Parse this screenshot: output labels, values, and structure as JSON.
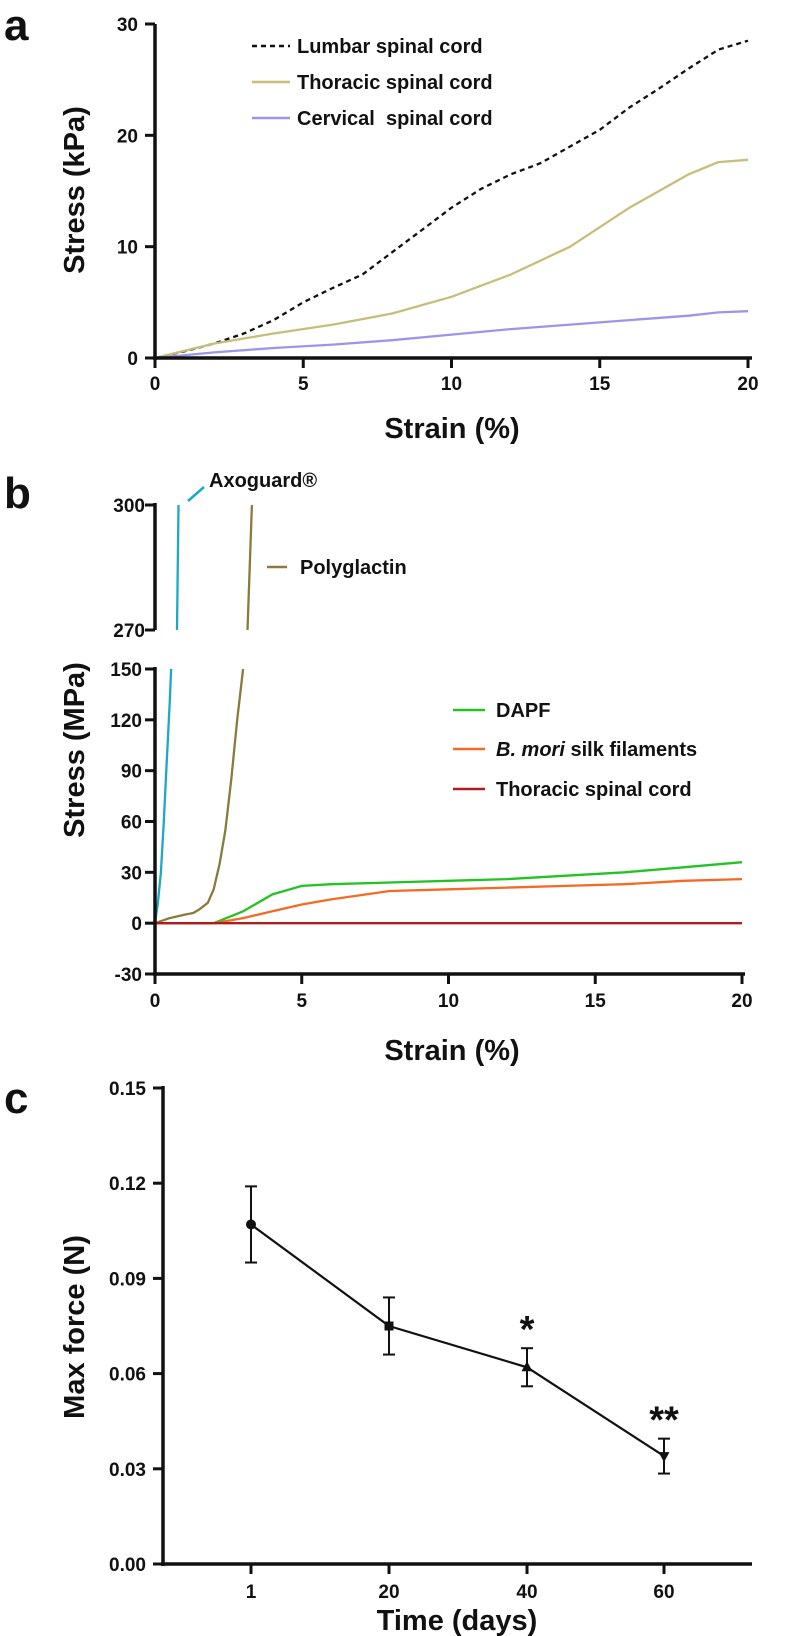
{
  "figure": {
    "panels": [
      "a",
      "b",
      "c"
    ]
  },
  "chart_data": [
    {
      "panel": "a",
      "type": "line",
      "xlabel": "Strain (%)",
      "ylabel": "Stress (kPa)",
      "xlim": [
        0,
        20
      ],
      "ylim": [
        0,
        30
      ],
      "xticks": [
        0,
        5,
        10,
        15,
        20
      ],
      "yticks": [
        0,
        10,
        20,
        30
      ],
      "grid": false,
      "legend_position": "top-center",
      "series": [
        {
          "name": "Lumbar spinal cord",
          "color": "#111111",
          "dash": "dashed",
          "x": [
            0,
            1,
            2,
            3,
            4,
            5,
            6,
            7,
            8,
            9,
            10,
            11,
            12,
            13,
            14,
            15,
            16,
            17,
            18,
            19,
            20
          ],
          "y": [
            0,
            0.6,
            1.3,
            2.2,
            3.4,
            5.0,
            6.3,
            7.5,
            9.5,
            11.5,
            13.5,
            15.2,
            16.5,
            17.5,
            19.0,
            20.5,
            22.5,
            24.2,
            26.0,
            27.7,
            28.5
          ]
        },
        {
          "name": "Thoracic spinal cord",
          "color": "#c8bd7a",
          "dash": "solid",
          "x": [
            0,
            2,
            4,
            6,
            8,
            10,
            12,
            14,
            16,
            18,
            19,
            20
          ],
          "y": [
            0,
            1.3,
            2.2,
            3.0,
            4.0,
            5.5,
            7.5,
            10.0,
            13.5,
            16.5,
            17.6,
            17.8
          ]
        },
        {
          "name": "Cervical  spinal cord",
          "color": "#9b95ec",
          "dash": "solid",
          "x": [
            0,
            2,
            4,
            6,
            8,
            10,
            12,
            14,
            16,
            18,
            19,
            20
          ],
          "y": [
            0,
            0.5,
            0.9,
            1.2,
            1.6,
            2.1,
            2.6,
            3.0,
            3.4,
            3.8,
            4.1,
            4.2
          ]
        }
      ]
    },
    {
      "panel": "b",
      "type": "line",
      "xlabel": "Strain (%)",
      "ylabel": "Stress (MPa)",
      "xlim": [
        0,
        20
      ],
      "ylim_lower": [
        -30,
        150
      ],
      "ylim_upper": [
        270,
        300
      ],
      "xticks": [
        0,
        5,
        10,
        15,
        20
      ],
      "yticks_lower": [
        -30,
        0,
        30,
        60,
        90,
        120,
        150
      ],
      "yticks_upper": [
        270,
        300
      ],
      "grid": false,
      "legend_position": "right",
      "series": [
        {
          "name": "Axoguard®",
          "color": "#1ba9c4",
          "legend": false,
          "x": [
            0,
            0.1,
            0.2,
            0.3,
            0.4,
            0.5,
            0.55,
            0.75,
            0.8
          ],
          "y": [
            0,
            12,
            30,
            60,
            95,
            130,
            150,
            270,
            300
          ]
        },
        {
          "name": "Polyglactin",
          "color": "#8a7a3c",
          "legend": false,
          "x": [
            0,
            0.5,
            1.0,
            1.3,
            1.5,
            1.8,
            2.0,
            2.2,
            2.4,
            2.6,
            2.8,
            3.0,
            3.15,
            3.3
          ],
          "y": [
            0,
            3,
            5,
            6,
            8,
            12,
            20,
            35,
            55,
            85,
            120,
            150,
            270,
            300
          ]
        },
        {
          "name": "DAPF",
          "color": "#22c322",
          "legend": true,
          "x": [
            0,
            2.0,
            3.0,
            4.0,
            5.0,
            6.0,
            8.0,
            10.0,
            12.0,
            14.0,
            16.0,
            18.0,
            20.0
          ],
          "y": [
            0,
            0,
            7,
            17,
            22,
            23,
            24,
            25,
            26,
            28,
            30,
            33,
            36
          ]
        },
        {
          "name": "B. mori silk filaments",
          "color": "#f46a22",
          "legend": true,
          "x": [
            0,
            2.0,
            3.0,
            4.0,
            5.0,
            6.0,
            8.0,
            10.0,
            12.0,
            14.0,
            16.0,
            18.0,
            20.0
          ],
          "y": [
            0,
            0,
            3,
            7,
            11,
            14,
            19,
            20,
            21,
            22,
            23,
            25,
            26
          ]
        },
        {
          "name": "Thoracic spinal cord",
          "color": "#b01c1c",
          "legend": true,
          "x": [
            0,
            20
          ],
          "y": [
            0,
            0
          ]
        }
      ],
      "legend_entries": [
        {
          "series": "DAPF",
          "italic_part": "",
          "rest": "DAPF"
        },
        {
          "series": "B. mori silk filaments",
          "italic_part": "B. mori",
          "rest": " silk filaments"
        },
        {
          "series": "Thoracic spinal cord",
          "italic_part": "",
          "rest": "Thoracic spinal cord"
        }
      ],
      "annotations": [
        "Axoguard®",
        "Polyglactin"
      ]
    },
    {
      "panel": "c",
      "type": "line",
      "xlabel": "Time (days)",
      "ylabel": "Max force (N)",
      "ylim": [
        0,
        0.15
      ],
      "yticks": [
        "0.00",
        "0.03",
        "0.06",
        "0.09",
        "0.12",
        "0.15"
      ],
      "grid": false,
      "categories": [
        "1",
        "20",
        "40",
        "60"
      ],
      "series": [
        {
          "name": "Max force",
          "color": "#111111",
          "values": [
            0.107,
            0.075,
            0.062,
            0.034
          ],
          "errors": [
            0.012,
            0.009,
            0.006,
            0.0055
          ],
          "markers": [
            "circle",
            "square",
            "triangle-up",
            "triangle-down"
          ],
          "significance": [
            "",
            "",
            "*",
            "**"
          ]
        }
      ]
    }
  ]
}
